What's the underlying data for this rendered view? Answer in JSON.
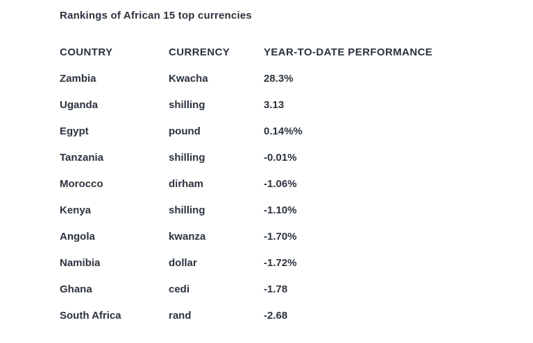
{
  "colors": {
    "text": "#2b333d",
    "background": "#ffffff"
  },
  "chart_data": {
    "type": "table",
    "title": "Rankings of African 15 top currencies",
    "columns": [
      "COUNTRY",
      "CURRENCY",
      "YEAR-TO-DATE PERFORMANCE"
    ],
    "rows": [
      {
        "country": "Zambia",
        "currency": "Kwacha",
        "performance": "28.3%"
      },
      {
        "country": "Uganda",
        "currency": "shilling",
        "performance": "3.13"
      },
      {
        "country": "Egypt",
        "currency": "pound",
        "performance": "0.14%%"
      },
      {
        "country": "Tanzania",
        "currency": "shilling",
        "performance": "-0.01%"
      },
      {
        "country": "Morocco",
        "currency": "dirham",
        "performance": "-1.06%"
      },
      {
        "country": "Kenya",
        "currency": "shilling",
        "performance": "-1.10%"
      },
      {
        "country": "Angola",
        "currency": "kwanza",
        "performance": "-1.70%"
      },
      {
        "country": "Namibia",
        "currency": "dollar",
        "performance": "-1.72%"
      },
      {
        "country": "Ghana",
        "currency": "cedi",
        "performance": "-1.78"
      },
      {
        "country": "South Africa",
        "currency": "rand",
        "performance": "-2.68"
      }
    ]
  }
}
